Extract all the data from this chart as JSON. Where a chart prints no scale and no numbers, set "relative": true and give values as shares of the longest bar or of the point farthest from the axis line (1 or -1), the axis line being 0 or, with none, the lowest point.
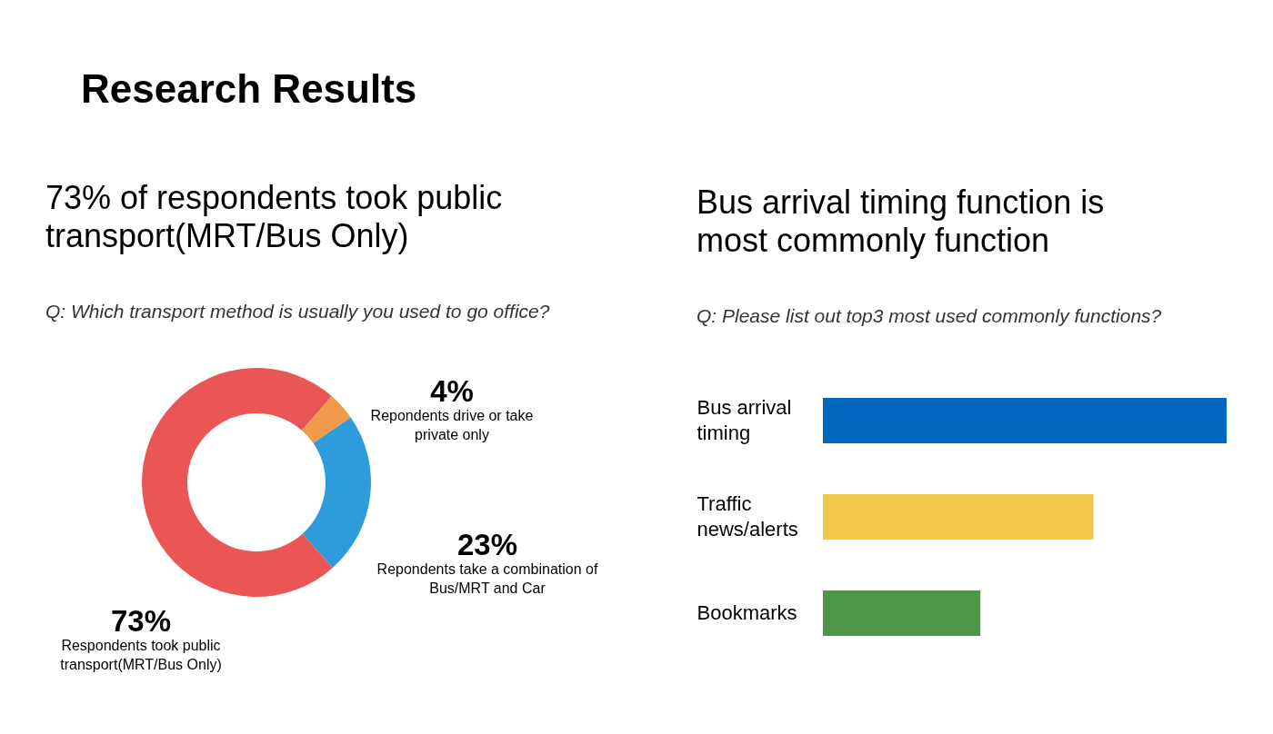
{
  "chart_data": [
    {
      "type": "donut",
      "title": "73% of respondents took public transport(MRT/Bus Only)",
      "subtitle": "Q: Which transport method is usually you used to go office?",
      "annotations": [
        "Research Results"
      ],
      "categories": [
        "Repondents drive or take private only",
        "Repondents take a combination of Bus/MRT and Car",
        "Respondents took public transport(MRT/Bus Only)"
      ],
      "values": [
        4,
        23,
        73
      ],
      "colors": [
        "#f09a4a",
        "#2e9bda",
        "#ea5656"
      ],
      "value_labels": [
        "4%",
        "23%",
        "73%"
      ]
    },
    {
      "type": "bar",
      "orientation": "horizontal",
      "relative": true,
      "title": "Bus arrival timing function is most commonly function",
      "subtitle": "Q: Please list out top3 most used commonly functions?",
      "categories": [
        "Bus arrival timing",
        "Traffic news/alerts",
        "Bookmarks"
      ],
      "values": [
        1,
        0.67,
        0.39
      ],
      "colors": [
        "#0368c0",
        "#f2c84b",
        "#4d974a"
      ]
    }
  ]
}
